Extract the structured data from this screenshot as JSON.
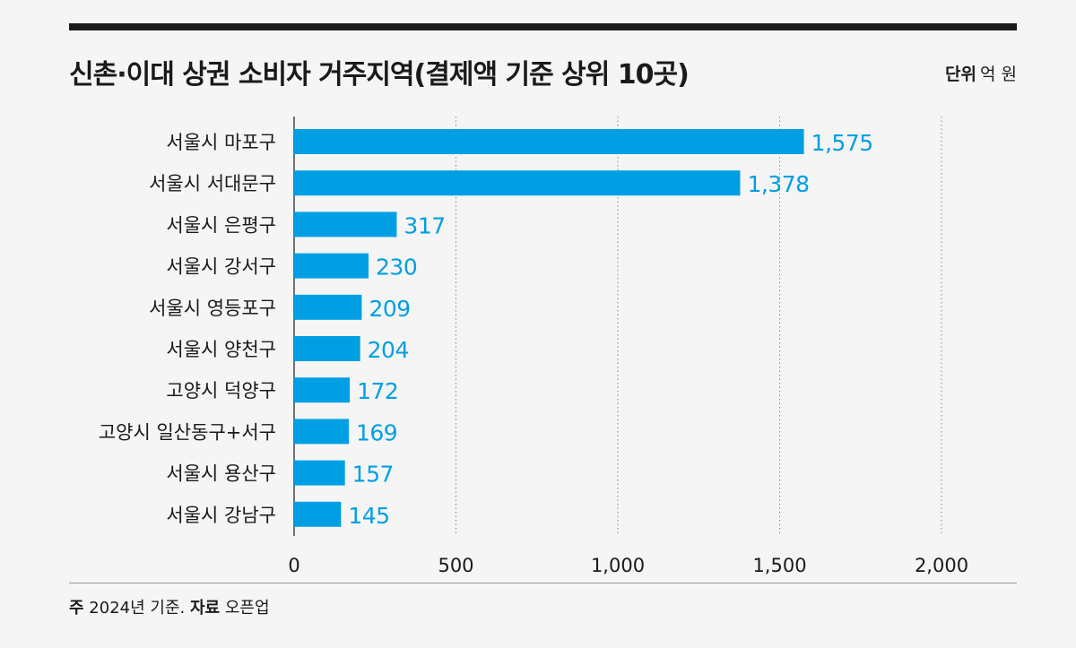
{
  "header": {
    "title": "신촌·이대 상권  소비자 거주지역(결제액 기준 상위 10곳)",
    "unit_label": "단위",
    "unit_value": "억 원"
  },
  "footer": {
    "note_label": "주",
    "note_text": "2024년 기준.",
    "source_label": "자료",
    "source_text": "오픈업"
  },
  "colors": {
    "bar": "#009fe3",
    "value_label": "#009fe3",
    "grid": "#888888",
    "axis": "#1a1a1a"
  },
  "chart_data": {
    "type": "bar",
    "orientation": "horizontal",
    "categories": [
      "서울시 마포구",
      "서울시 서대문구",
      "서울시 은평구",
      "서울시 강서구",
      "서울시 영등포구",
      "서울시 양천구",
      "고양시 덕양구",
      "고양시 일산동구+서구",
      "서울시 용산구",
      "서울시 강남구"
    ],
    "values": [
      1575,
      1378,
      317,
      230,
      209,
      204,
      172,
      169,
      157,
      145
    ],
    "value_labels": [
      "1,575",
      "1,378",
      "317",
      "230",
      "209",
      "204",
      "172",
      "169",
      "157",
      "145"
    ],
    "xlim": [
      0,
      2000
    ],
    "ticks": [
      0,
      500,
      1000,
      1500,
      2000
    ],
    "tick_labels": [
      "0",
      "500",
      "1,000",
      "1,500",
      "2,000"
    ],
    "grid": "vertical dotted",
    "legend": "none"
  }
}
